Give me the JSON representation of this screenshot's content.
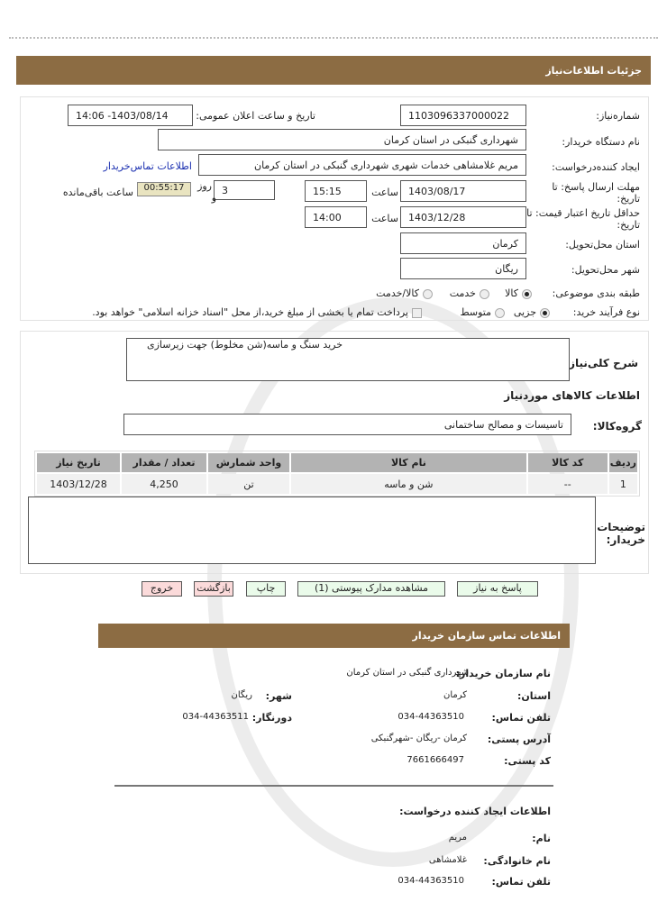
{
  "header": {
    "title": "جزئیات اطلاعات‌نیاز"
  },
  "form": {
    "need_number": {
      "label": "شماره‌نیاز:",
      "value": "1103096337000022"
    },
    "announce": {
      "label": "تاریخ و ساعت اعلان عمومی:",
      "value": "1403/08/14- 14:06"
    },
    "buyer": {
      "label": "نام دستگاه‌ خریدار:",
      "value": "شهرداری گنبکی در استان کرمان"
    },
    "creator": {
      "label": "ایجاد کننده‌درخواست:",
      "value": "مریم غلامشاهی خدمات شهری شهرداری گنبکی در استان کرمان",
      "link": "اطلاعات تماس‌خریدار"
    },
    "deadline": {
      "label": "مهلت ارسال پاسخ: تا تاریخ:",
      "date": "1403/08/17",
      "time_label": "ساعت",
      "time": "15:15",
      "days": "3",
      "days_label": "روز",
      "and": "و",
      "remaining": "00:55:17",
      "remaining_label": "ساعت باقی‌مانده"
    },
    "validity": {
      "label": "حداقل تاریخ اعتبار قیمت: تا تاریخ:",
      "date": "1403/12/28",
      "time_label": "ساعت",
      "time": "14:00"
    },
    "province": {
      "label": "استان محل‌تحویل:",
      "value": "کرمان"
    },
    "city": {
      "label": "شهر محل‌تحویل:",
      "value": "ریگان"
    },
    "category": {
      "label": "طبقه بندی موضوعی:",
      "options": [
        "کالا",
        "خدمت",
        "کالا/خدمت"
      ],
      "selected": "کالا"
    },
    "process": {
      "label": "نوع فرآیند خرید:",
      "options": [
        "جزیی",
        "متوسط"
      ],
      "selected": "جزیی",
      "note": "پرداخت تمام یا بخشی از مبلغ خرید،از محل \"اسناد خزانه اسلامی\" خواهد بود."
    }
  },
  "details": {
    "desc_label": "شرح کلی‌نیاز:",
    "desc": "خرید سنگ و ماسه(شن مخلوط) جهت زیرسازی",
    "goods_title": "اطلاعات کالاهای موردنیاز",
    "group_label": "گروه‌کالا:",
    "group": "تاسیسات و مصالح ساختمانی",
    "table": {
      "headers": [
        "ردیف",
        "کد کالا",
        "نام کالا",
        "واحد شمارش",
        "تعداد / مقدار",
        "تاریخ نیاز"
      ],
      "rows": [
        [
          "1",
          "--",
          "شن و ماسه",
          "تن",
          "4,250",
          "1403/12/28"
        ]
      ]
    },
    "notes_label": "توضیحات خریدار:",
    "notes": ""
  },
  "buttons": {
    "reply": "پاسخ به نیاز",
    "attachments": "مشاهده مدارک پیوستی (1)",
    "print": "چاپ",
    "back": "بازگشت",
    "exit": "خروج"
  },
  "contact": {
    "title": "اطلاعات تماس سازمان خریدار",
    "org_label": "نام سازمان خریدار:",
    "org": "شهرداری گنبکی در استان کرمان",
    "province_label": "استان:",
    "province": "کرمان",
    "city_label": "شهر:",
    "city": "ریگان",
    "phone_label": "تلفن تماس:",
    "phone": "034-44363510",
    "fax_label": "دورنگار:",
    "fax": "034-44363511",
    "address_label": "آدرس پستی:",
    "address": "کرمان -ریگان -شهرگنبکی",
    "postal_label": "کد پستی:",
    "postal": "7661666497",
    "creator_title": "اطلاعات ایجاد کننده درخواست:",
    "name_label": "نام:",
    "name": "مریم",
    "family_label": "نام خانوادگی:",
    "family": "غلامشاهی",
    "cphone_label": "تلفن تماس:",
    "cphone": "034-44363510"
  }
}
